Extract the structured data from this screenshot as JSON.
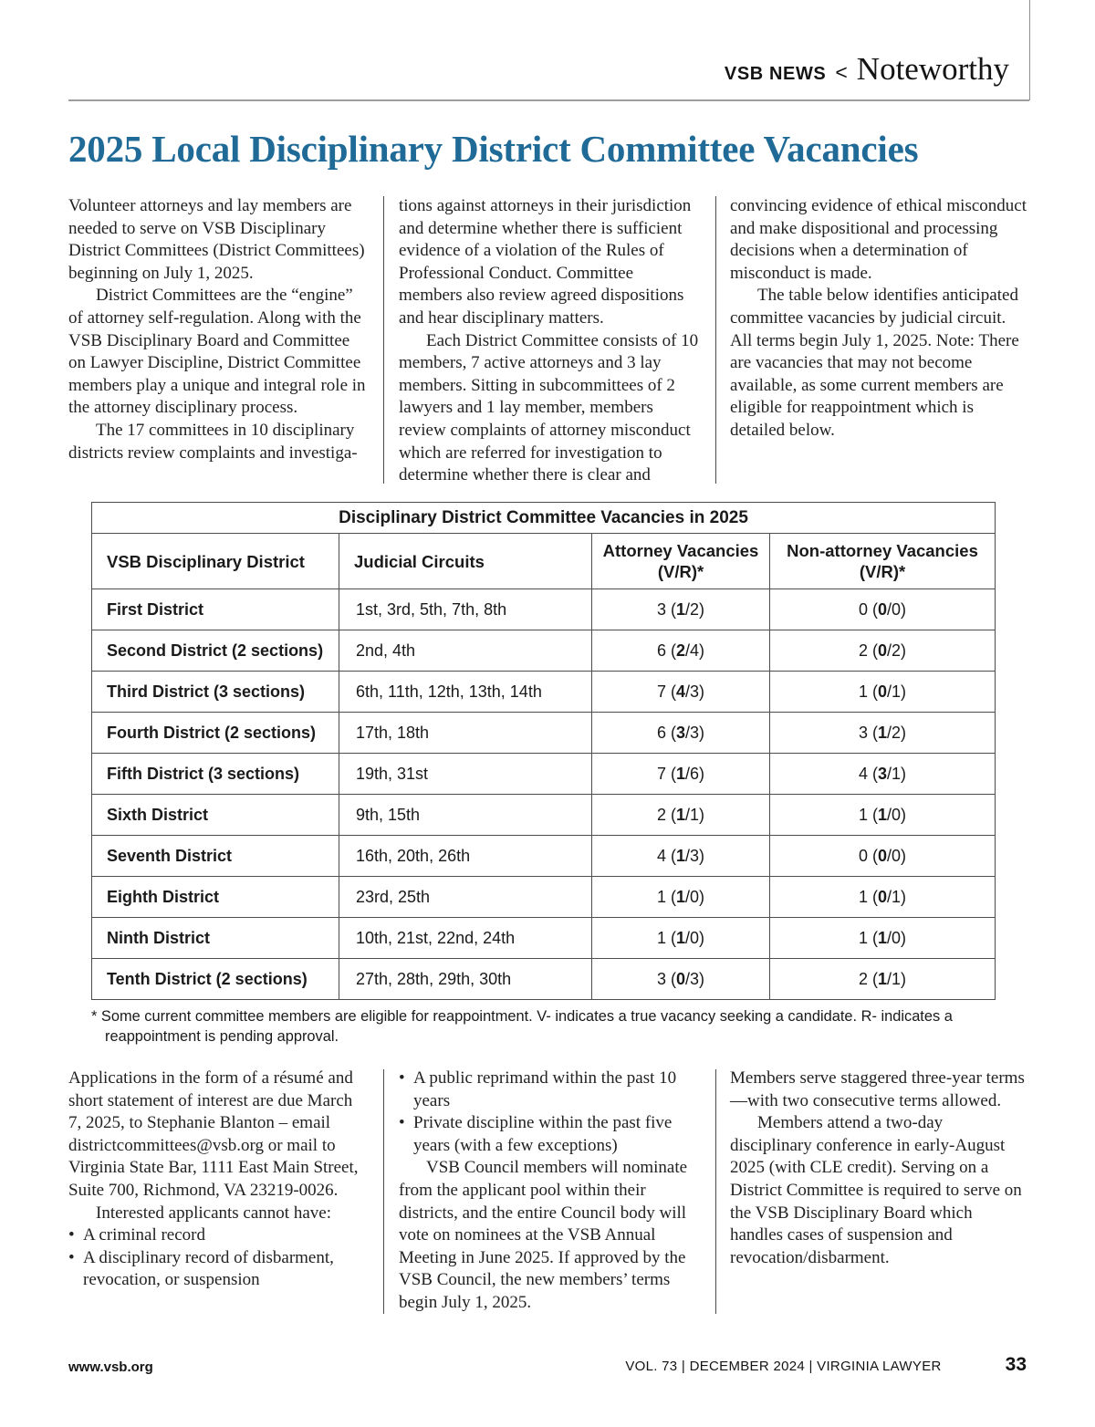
{
  "header": {
    "kicker": "VSB NEWS",
    "separator": "<",
    "section": "Noteworthy",
    "title": "2025 Local Disciplinary District Committee Vacancies"
  },
  "intro": {
    "col1": [
      {
        "type": "p",
        "indent": false,
        "text": "Volunteer attorneys and lay members are needed to serve on VSB Disciplinary District Committees (District Committees) beginning on July 1, 2025."
      },
      {
        "type": "p",
        "indent": true,
        "text": "District Committees are the “engine” of attorney self-regulation. Along with the VSB Disciplinary Board and Committee on Lawyer Discipline, District Committee members play a unique and integral role in the attorney disciplinary process."
      },
      {
        "type": "p",
        "indent": true,
        "text": "The 17 committees in 10 disciplinary districts review complaints and investiga-"
      }
    ],
    "col2": [
      {
        "type": "p",
        "indent": false,
        "text": "tions against attorneys in their jurisdiction and determine whether there is sufficient evidence of a violation of the Rules of Professional Conduct. Committee members also review agreed dispositions and hear disciplinary matters."
      },
      {
        "type": "p",
        "indent": true,
        "text": "Each District Committee consists of 10 members, 7 active attorneys and 3 lay members. Sitting in subcommittees of 2 lawyers and 1 lay member, members review complaints of attorney misconduct which are referred for investigation to determine whether there is clear and"
      }
    ],
    "col3": [
      {
        "type": "p",
        "indent": false,
        "text": "convincing evidence of ethical misconduct and make dispositional and processing decisions when a determination of misconduct is made."
      },
      {
        "type": "p",
        "indent": true,
        "text": "The table below identifies anticipated committee vacancies by judicial circuit. All terms begin July 1, 2025. Note: There are vacancies that may not become available, as some current members are eligible for reappointment which is detailed below."
      }
    ]
  },
  "table": {
    "title": "Disciplinary District Committee Vacancies in 2025",
    "headers": [
      "VSB Disciplinary District",
      "Judicial Circuits",
      "Attorney Vacancies\n(V/R)*",
      "Non-attorney Vacancies\n(V/R)*"
    ],
    "rows": [
      {
        "district": "First District",
        "circuits": "1st, 3rd, 5th, 7th, 8th",
        "attorney": {
          "total": "3",
          "v": "1",
          "r": "2"
        },
        "non_attorney": {
          "total": "0",
          "v": "0",
          "r": "0"
        }
      },
      {
        "district": "Second District (2 sections)",
        "circuits": "2nd, 4th",
        "attorney": {
          "total": "6",
          "v": "2",
          "r": "4"
        },
        "non_attorney": {
          "total": "2",
          "v": "0",
          "r": "2"
        }
      },
      {
        "district": "Third District (3 sections)",
        "circuits": "6th, 11th, 12th, 13th, 14th",
        "attorney": {
          "total": "7",
          "v": "4",
          "r": "3"
        },
        "non_attorney": {
          "total": "1",
          "v": "0",
          "r": "1"
        }
      },
      {
        "district": "Fourth District (2 sections)",
        "circuits": "17th, 18th",
        "attorney": {
          "total": "6",
          "v": "3",
          "r": "3"
        },
        "non_attorney": {
          "total": "3",
          "v": "1",
          "r": "2"
        }
      },
      {
        "district": "Fifth District (3 sections)",
        "circuits": "19th, 31st",
        "attorney": {
          "total": "7",
          "v": "1",
          "r": "6"
        },
        "non_attorney": {
          "total": "4",
          "v": "3",
          "r": "1"
        }
      },
      {
        "district": "Sixth District",
        "circuits": "9th, 15th",
        "attorney": {
          "total": "2",
          "v": "1",
          "r": "1"
        },
        "non_attorney": {
          "total": "1",
          "v": "1",
          "r": "0"
        }
      },
      {
        "district": "Seventh District",
        "circuits": "16th, 20th, 26th",
        "attorney": {
          "total": "4",
          "v": "1",
          "r": "3"
        },
        "non_attorney": {
          "total": "0",
          "v": "0",
          "r": "0"
        }
      },
      {
        "district": "Eighth District",
        "circuits": "23rd, 25th",
        "attorney": {
          "total": "1",
          "v": "1",
          "r": "0"
        },
        "non_attorney": {
          "total": "1",
          "v": "0",
          "r": "1"
        }
      },
      {
        "district": "Ninth District",
        "circuits": "10th, 21st, 22nd, 24th",
        "attorney": {
          "total": "1",
          "v": "1",
          "r": "0"
        },
        "non_attorney": {
          "total": "1",
          "v": "1",
          "r": "0"
        }
      },
      {
        "district": "Tenth District (2 sections)",
        "circuits": "27th, 28th, 29th, 30th",
        "attorney": {
          "total": "3",
          "v": "0",
          "r": "3"
        },
        "non_attorney": {
          "total": "2",
          "v": "1",
          "r": "1"
        }
      }
    ],
    "footnote": "* Some current committee members are eligible for reappointment. V- indicates a true vacancy seeking a candidate. R- indicates a reappointment is pending approval."
  },
  "outro": {
    "col1": [
      {
        "type": "p",
        "indent": false,
        "text": "Applications in the form of a résumé and short statement of interest are due March 7, 2025, to Stephanie Blanton – email districtcommittees@vsb.org or mail to Virginia State Bar, 1111 East Main Street, Suite 700, Richmond, VA 23219-0026."
      },
      {
        "type": "p",
        "indent": true,
        "text": "Interested applicants cannot have:"
      },
      {
        "type": "bullet",
        "text": "A criminal record"
      },
      {
        "type": "bullet",
        "text": "A disciplinary record of disbarment, revocation, or suspension"
      }
    ],
    "col2": [
      {
        "type": "bullet",
        "text": "A public reprimand within the past 10 years"
      },
      {
        "type": "bullet",
        "text": "Private discipline within the past five years (with a few exceptions)"
      },
      {
        "type": "p",
        "indent": true,
        "text": "VSB Council members will nominate from the applicant pool within their districts, and the entire Council body will vote on nominees at the VSB Annual Meeting in June 2025. If approved by the VSB Council, the new members’ terms begin July 1, 2025."
      }
    ],
    "col3": [
      {
        "type": "p",
        "indent": false,
        "text": "Members serve staggered three-year terms—with two consecutive terms allowed."
      },
      {
        "type": "p",
        "indent": true,
        "text": "Members attend a two-day disciplinary conference in early-August 2025 (with CLE credit). Serving on a District Committee is required to serve on the VSB Disciplinary Board which handles cases of suspension and revocation/disbarment."
      }
    ]
  },
  "footer": {
    "site": "www.vsb.org",
    "issue": "VOL. 73  |  DECEMBER 2024  |  VIRGINIA LAWYER",
    "page_number": "33"
  },
  "colors": {
    "title_blue": "#1f6a96",
    "rule_gray": "#9d9d9d",
    "table_border": "#4d4d4d"
  }
}
